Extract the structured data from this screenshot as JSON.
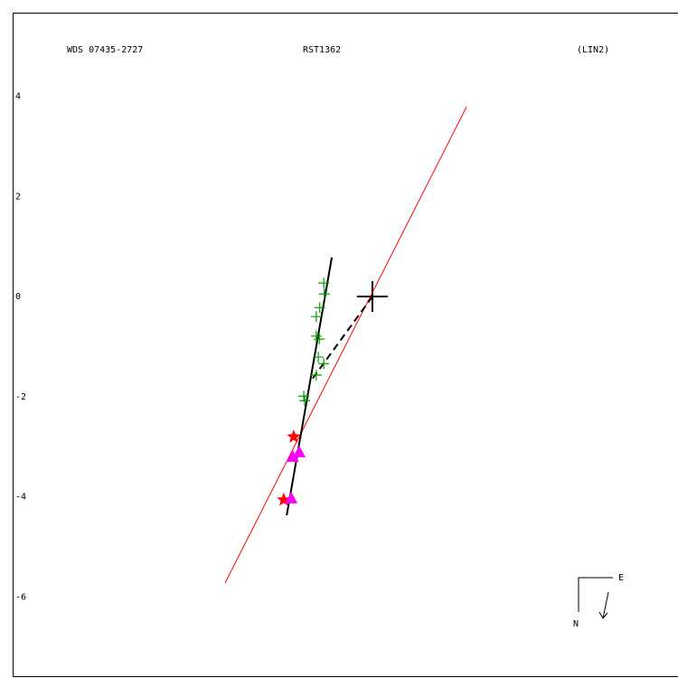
{
  "chart_data": {
    "type": "scatter",
    "title": "WDS 07435-2727",
    "subtitle": "RST1362",
    "annotation": "(LIN2)",
    "compass": {
      "east": "E",
      "north": "N"
    },
    "xlim": [
      -7.18,
      6.1
    ],
    "ylim": [
      -7.6,
      5.67
    ],
    "yticks": [
      4,
      2,
      0,
      -2,
      -4,
      -6
    ],
    "grid": false,
    "lines": [
      {
        "color": "#ff0000",
        "dash": false,
        "x": [
          -2.94,
          1.88
        ],
        "y": [
          -5.72,
          3.79
        ]
      },
      {
        "color": "#000000",
        "dash": false,
        "x": [
          -1.71,
          -0.81
        ],
        "y": [
          -4.37,
          0.78
        ]
      },
      {
        "color": "#000000",
        "dash": true,
        "x": [
          0,
          -1.21
        ],
        "y": [
          0,
          -1.66
        ]
      }
    ],
    "series": [
      {
        "color": "#00a000",
        "marker": "plus",
        "x": [
          -0.97,
          -0.96,
          -1.05,
          -1.12,
          -1.06,
          -1.12,
          -1.08,
          -0.97,
          -1.12,
          -1.37,
          -1.35
        ],
        "y": [
          0.27,
          0.05,
          -0.22,
          -0.4,
          -0.85,
          -0.79,
          -1.21,
          -1.34,
          -1.57,
          -1.99,
          -2.08
        ]
      },
      {
        "color": "#ff0000",
        "marker": "star",
        "x": [
          -1.57,
          -1.77
        ],
        "y": [
          -2.8,
          -4.06
        ]
      },
      {
        "color": "#ff00ff",
        "marker": "triangle",
        "x": [
          -1.46,
          -1.59,
          -1.62
        ],
        "y": [
          -3.12,
          -3.21,
          -4.04
        ]
      }
    ]
  }
}
